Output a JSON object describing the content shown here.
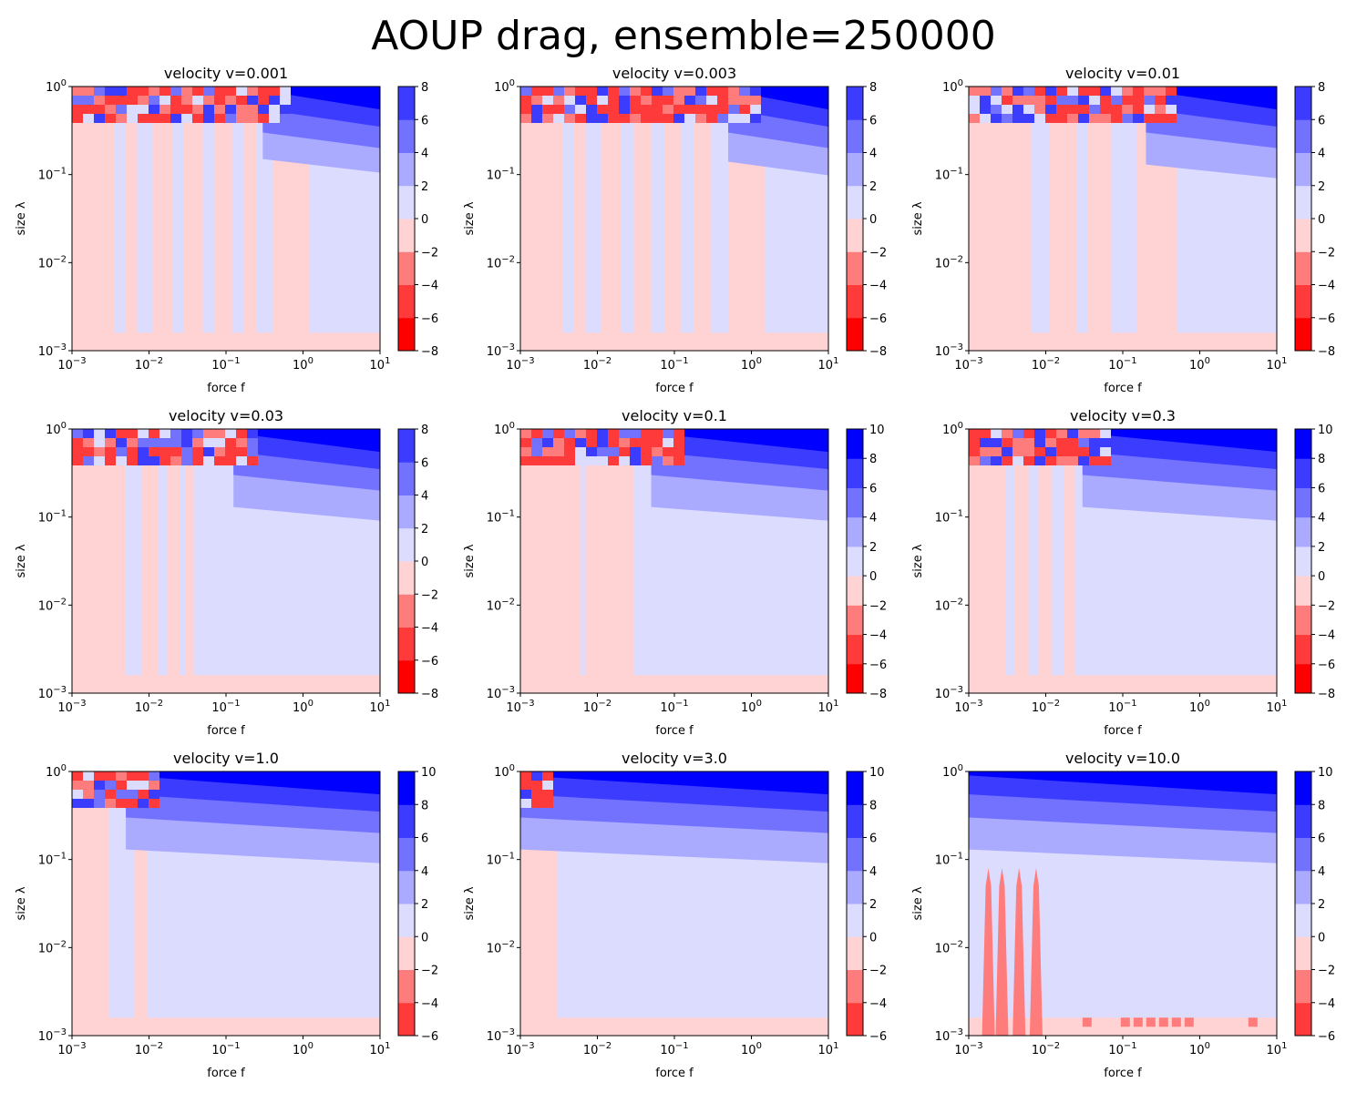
{
  "figure": {
    "title": "AOUP drag, ensemble=250000"
  },
  "colors": {
    "levels": [
      "#ff0000",
      "#ff3a3a",
      "#ff7c7c",
      "#ffd3d3",
      "#dcdcff",
      "#aaaaff",
      "#7272ff",
      "#3c3cff",
      "#0000ff"
    ],
    "outline": "#000000"
  },
  "chart_data": [
    {
      "type": "contourf",
      "title": "velocity v=0.001",
      "xlabel": "force f",
      "ylabel": "size λ",
      "xscale": "log",
      "yscale": "log",
      "xlim": [
        0.001,
        10
      ],
      "ylim": [
        0.001,
        1
      ],
      "x_tick_labels": [
        "10^-3",
        "10^-2",
        "10^-1",
        "10^0",
        "10^1"
      ],
      "y_tick_labels": [
        "10^-3",
        "10^-2",
        "10^-1",
        "10^0"
      ],
      "colorbar": {
        "levels": [
          -8,
          -6,
          -4,
          -2,
          0,
          2,
          4,
          6,
          8
        ],
        "tick_labels": [
          "-8",
          "-6",
          "-4",
          "-2",
          "0",
          "2",
          "4",
          "6",
          "8"
        ]
      },
      "positive_bands_f": [
        [
          0.0035,
          0.005
        ],
        [
          0.007,
          0.011
        ],
        [
          0.02,
          0.028
        ],
        [
          0.05,
          0.07
        ],
        [
          0.12,
          0.17
        ],
        [
          0.25,
          0.4
        ],
        [
          1.2,
          10
        ]
      ],
      "positive_top_band_lambda": 0.15,
      "noisy_strip_f_max": 0.6
    },
    {
      "type": "contourf",
      "title": "velocity v=0.003",
      "xlabel": "force f",
      "ylabel": "size λ",
      "xscale": "log",
      "yscale": "log",
      "xlim": [
        0.001,
        10
      ],
      "ylim": [
        0.001,
        1
      ],
      "x_tick_labels": [
        "10^-3",
        "10^-2",
        "10^-1",
        "10^0",
        "10^1"
      ],
      "y_tick_labels": [
        "10^-3",
        "10^-2",
        "10^-1",
        "10^0"
      ],
      "colorbar": {
        "levels": [
          -8,
          -6,
          -4,
          -2,
          0,
          2,
          4,
          6,
          8
        ],
        "tick_labels": [
          "-8",
          "-6",
          "-4",
          "-2",
          "0",
          "2",
          "4",
          "6",
          "8"
        ]
      },
      "positive_bands_f": [
        [
          0.0035,
          0.005
        ],
        [
          0.007,
          0.011
        ],
        [
          0.02,
          0.03
        ],
        [
          0.05,
          0.075
        ],
        [
          0.12,
          0.18
        ],
        [
          0.3,
          0.5
        ],
        [
          1.5,
          2.5
        ],
        [
          2.5,
          10
        ]
      ],
      "positive_top_band_lambda": 0.14,
      "noisy_strip_f_max": 1.0
    },
    {
      "type": "contourf",
      "title": "velocity v=0.01",
      "xlabel": "force f",
      "ylabel": "size λ",
      "xscale": "log",
      "yscale": "log",
      "xlim": [
        0.001,
        10
      ],
      "ylim": [
        0.001,
        1
      ],
      "x_tick_labels": [
        "10^-3",
        "10^-2",
        "10^-1",
        "10^0",
        "10^1"
      ],
      "y_tick_labels": [
        "10^-3",
        "10^-2",
        "10^-1",
        "10^0"
      ],
      "colorbar": {
        "levels": [
          -8,
          -6,
          -4,
          -2,
          0,
          2,
          4,
          6,
          8
        ],
        "tick_labels": [
          "-8",
          "-6",
          "-4",
          "-2",
          "0",
          "2",
          "4",
          "6",
          "8"
        ]
      },
      "positive_bands_f": [
        [
          0.0065,
          0.011
        ],
        [
          0.025,
          0.035
        ],
        [
          0.07,
          0.15
        ],
        [
          0.5,
          10
        ]
      ],
      "positive_top_band_lambda": 0.13,
      "noisy_strip_f_max": 0.4
    },
    {
      "type": "contourf",
      "title": "velocity v=0.03",
      "xlabel": "force f",
      "ylabel": "size λ",
      "xscale": "log",
      "yscale": "log",
      "xlim": [
        0.001,
        10
      ],
      "ylim": [
        0.001,
        1
      ],
      "x_tick_labels": [
        "10^-3",
        "10^-2",
        "10^-1",
        "10^0",
        "10^1"
      ],
      "y_tick_labels": [
        "10^-3",
        "10^-2",
        "10^-1",
        "10^0"
      ],
      "colorbar": {
        "levels": [
          -8,
          -6,
          -4,
          -2,
          0,
          2,
          4,
          6,
          8
        ],
        "tick_labels": [
          "-8",
          "-6",
          "-4",
          "-2",
          "0",
          "2",
          "4",
          "6",
          "8"
        ]
      },
      "positive_bands_f": [
        [
          0.005,
          0.008
        ],
        [
          0.013,
          0.017
        ],
        [
          0.025,
          0.03
        ],
        [
          0.038,
          10
        ]
      ],
      "positive_top_band_lambda": 0.13,
      "noisy_strip_f_max": 0.25
    },
    {
      "type": "contourf",
      "title": "velocity v=0.1",
      "xlabel": "force f",
      "ylabel": "size λ",
      "xscale": "log",
      "yscale": "log",
      "xlim": [
        0.001,
        10
      ],
      "ylim": [
        0.001,
        1
      ],
      "x_tick_labels": [
        "10^-3",
        "10^-2",
        "10^-1",
        "10^0",
        "10^1"
      ],
      "y_tick_labels": [
        "10^-3",
        "10^-2",
        "10^-1",
        "10^0"
      ],
      "colorbar": {
        "levels": [
          -8,
          -6,
          -4,
          -2,
          0,
          2,
          4,
          6,
          8,
          10
        ],
        "tick_labels": [
          "-8",
          "-6",
          "-4",
          "-2",
          "0",
          "2",
          "4",
          "6",
          "8",
          "10"
        ]
      },
      "positive_bands_f": [
        [
          0.006,
          0.007
        ],
        [
          0.03,
          10
        ]
      ],
      "positive_top_band_lambda": 0.13,
      "noisy_strip_f_max": 0.1
    },
    {
      "type": "contourf",
      "title": "velocity v=0.3",
      "xlabel": "force f",
      "ylabel": "size λ",
      "xscale": "log",
      "yscale": "log",
      "xlim": [
        0.001,
        10
      ],
      "ylim": [
        0.001,
        1
      ],
      "x_tick_labels": [
        "10^-3",
        "10^-2",
        "10^-1",
        "10^0",
        "10^1"
      ],
      "y_tick_labels": [
        "10^-3",
        "10^-2",
        "10^-1",
        "10^0"
      ],
      "colorbar": {
        "levels": [
          -8,
          -6,
          -4,
          -2,
          0,
          2,
          4,
          6,
          8,
          10
        ],
        "tick_labels": [
          "-8",
          "-6",
          "-4",
          "-2",
          "0",
          "2",
          "4",
          "6",
          "8",
          "10"
        ]
      },
      "positive_bands_f": [
        [
          0.003,
          0.004
        ],
        [
          0.006,
          0.008
        ],
        [
          0.012,
          0.017
        ],
        [
          0.024,
          10
        ]
      ],
      "positive_top_band_lambda": 0.13,
      "noisy_strip_f_max": 0.06
    },
    {
      "type": "contourf",
      "title": "velocity v=1.0",
      "xlabel": "force f",
      "ylabel": "size λ",
      "xscale": "log",
      "yscale": "log",
      "xlim": [
        0.001,
        10
      ],
      "ylim": [
        0.001,
        1
      ],
      "x_tick_labels": [
        "10^-3",
        "10^-2",
        "10^-1",
        "10^0",
        "10^1"
      ],
      "y_tick_labels": [
        "10^-3",
        "10^-2",
        "10^-1",
        "10^0"
      ],
      "colorbar": {
        "levels": [
          -6,
          -4,
          -2,
          0,
          2,
          4,
          6,
          8,
          10
        ],
        "tick_labels": [
          "-6",
          "-4",
          "-2",
          "0",
          "2",
          "4",
          "6",
          "8",
          "10"
        ]
      },
      "positive_bands_f": [
        [
          0.003,
          0.0065
        ],
        [
          0.0095,
          10
        ]
      ],
      "positive_top_band_lambda": 0.13,
      "noisy_strip_f_max": 0.01
    },
    {
      "type": "contourf",
      "title": "velocity v=3.0",
      "xlabel": "force f",
      "ylabel": "size λ",
      "xscale": "log",
      "yscale": "log",
      "xlim": [
        0.001,
        10
      ],
      "ylim": [
        0.001,
        1
      ],
      "x_tick_labels": [
        "10^-3",
        "10^-2",
        "10^-1",
        "10^0",
        "10^1"
      ],
      "y_tick_labels": [
        "10^-3",
        "10^-2",
        "10^-1",
        "10^0"
      ],
      "colorbar": {
        "levels": [
          -6,
          -4,
          -2,
          0,
          2,
          4,
          6,
          8,
          10
        ],
        "tick_labels": [
          "-6",
          "-4",
          "-2",
          "0",
          "2",
          "4",
          "6",
          "8",
          "10"
        ]
      },
      "positive_bands_f": [
        [
          0.003,
          10
        ]
      ],
      "positive_top_band_lambda": 0.13,
      "noisy_strip_f_max": 0.002
    },
    {
      "type": "contourf",
      "title": "velocity v=10.0",
      "xlabel": "force f",
      "ylabel": "size λ",
      "xscale": "log",
      "yscale": "log",
      "xlim": [
        0.001,
        10
      ],
      "ylim": [
        0.001,
        1
      ],
      "x_tick_labels": [
        "10^-3",
        "10^-2",
        "10^-1",
        "10^0",
        "10^1"
      ],
      "y_tick_labels": [
        "10^-3",
        "10^-2",
        "10^-1",
        "10^0"
      ],
      "colorbar": {
        "levels": [
          -6,
          -4,
          -2,
          0,
          2,
          4,
          6,
          8,
          10
        ],
        "tick_labels": [
          "-6",
          "-4",
          "-2",
          "0",
          "2",
          "4",
          "6",
          "8",
          "10"
        ]
      },
      "positive_bands_f": [
        [
          0.001,
          10
        ]
      ],
      "positive_top_band_lambda": 0.13,
      "negative_spikes_f": [
        0.0018,
        0.0027,
        0.0045,
        0.0075
      ],
      "noisy_strip_f_max": 0.0,
      "bottom_noise_f_min": 0.03
    }
  ]
}
